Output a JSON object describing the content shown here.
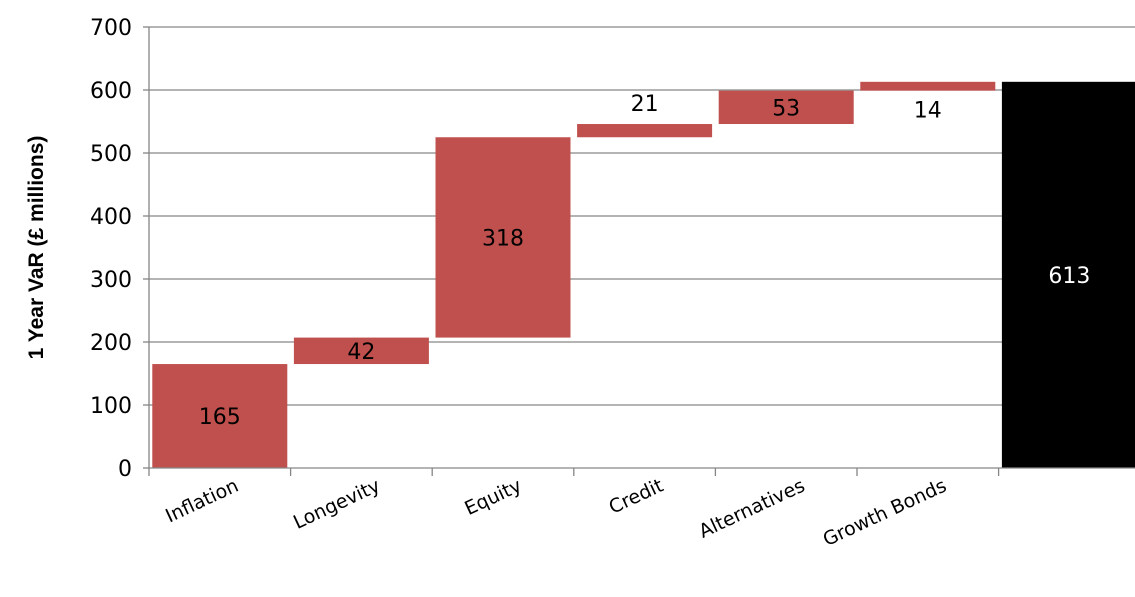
{
  "chart_data": {
    "type": "bar",
    "subtype": "waterfall",
    "title": "",
    "xlabel": "",
    "ylabel": "1 Year VaR (£ millions)",
    "ylim": [
      0,
      700
    ],
    "yticks": [
      0,
      100,
      200,
      300,
      400,
      500,
      600,
      700
    ],
    "grid": true,
    "legend": "none",
    "categories": [
      "Inflation",
      "Longevity",
      "Equity",
      "Credit",
      "Alternatives",
      "Growth Bonds",
      ""
    ],
    "bars": [
      {
        "category": "Inflation",
        "base": 0,
        "value": 165,
        "label": "165",
        "label_position": "inside"
      },
      {
        "category": "Longevity",
        "base": 165,
        "value": 42,
        "label": "42",
        "label_position": "inside"
      },
      {
        "category": "Equity",
        "base": 207,
        "value": 318,
        "label": "318",
        "label_position": "inside"
      },
      {
        "category": "Credit",
        "base": 525,
        "value": 21,
        "label": "21",
        "label_position": "above"
      },
      {
        "category": "Alternatives",
        "base": 546,
        "value": 53,
        "label": "53",
        "label_position": "inside"
      },
      {
        "category": "Growth Bonds",
        "base": 599,
        "value": 14,
        "label": "14",
        "label_position": "below"
      },
      {
        "category": "",
        "base": 0,
        "value": 613,
        "label": "613",
        "label_position": "inside",
        "total": true
      }
    ],
    "colors": {
      "increment": "#c0504d",
      "total": "#000000",
      "total_label": "#ffffff",
      "label": "#000000",
      "grid": "#868686"
    }
  }
}
